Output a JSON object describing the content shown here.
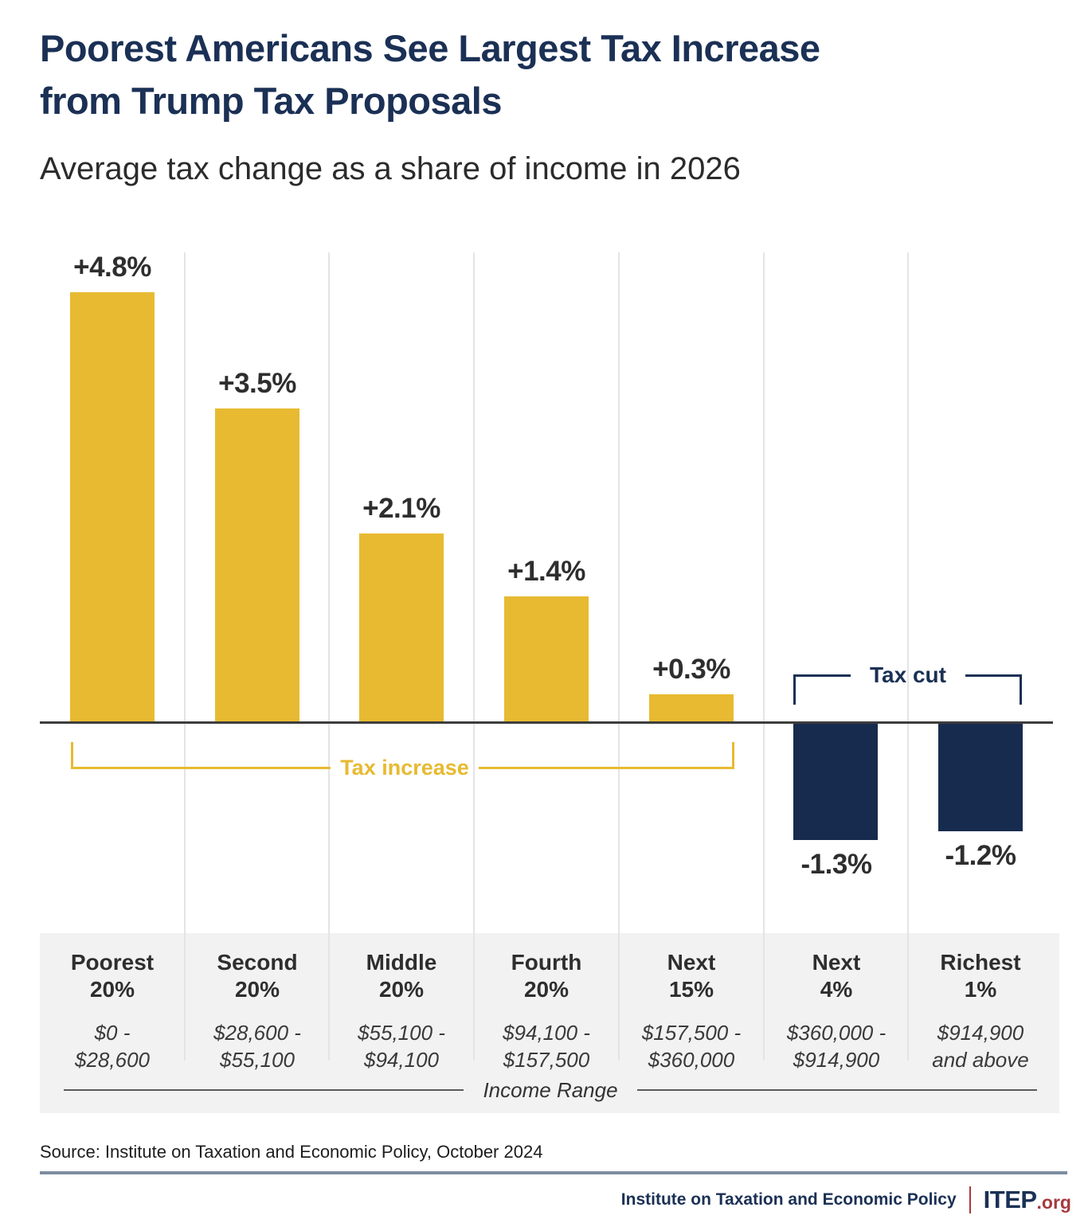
{
  "title_line1": "Poorest Americans See Largest Tax Increase",
  "title_line2": "from Trump Tax Proposals",
  "subtitle": "Average tax change as a share of income in 2026",
  "chart_data": {
    "type": "bar",
    "title": "Poorest Americans See Largest Tax Increase from Trump Tax Proposals",
    "subtitle": "Average tax change as a share of income in 2026",
    "unit": "percent of income",
    "categories": [
      {
        "name": "Poorest",
        "share": "20%",
        "range1": "$0 -",
        "range2": "$28,600"
      },
      {
        "name": "Second",
        "share": "20%",
        "range1": "$28,600 -",
        "range2": "$55,100"
      },
      {
        "name": "Middle",
        "share": "20%",
        "range1": "$55,100 -",
        "range2": "$94,100"
      },
      {
        "name": "Fourth",
        "share": "20%",
        "range1": "$94,100 -",
        "range2": "$157,500"
      },
      {
        "name": "Next",
        "share": "15%",
        "range1": "$157,500 -",
        "range2": "$360,000"
      },
      {
        "name": "Next",
        "share": "4%",
        "range1": "$360,000 -",
        "range2": "$914,900"
      },
      {
        "name": "Richest",
        "share": "1%",
        "range1": "$914,900",
        "range2": "and above"
      }
    ],
    "values": [
      4.8,
      3.5,
      2.1,
      1.4,
      0.3,
      -1.3,
      -1.2
    ],
    "value_labels": [
      "+4.8%",
      "+3.5%",
      "+2.1%",
      "+1.4%",
      "+0.3%",
      "-1.3%",
      "-1.2%"
    ],
    "annotations": {
      "tax_increase_label": "Tax increase",
      "tax_cut_label": "Tax cut"
    },
    "xlabel": "Income Range",
    "ylabel": "",
    "ylim": [
      -1.5,
      5.0
    ],
    "baseline": 0,
    "grid": "vertical-column-separators",
    "legend": "none",
    "series_colors": {
      "tax_increase": "#E7BA31",
      "tax_cut": "#172B4F"
    }
  },
  "source": "Source: Institute on Taxation and Economic Policy, October 2024",
  "footer": {
    "org": "Institute on Taxation and Economic Policy",
    "brand": "ITEP",
    "brand_suffix": ".org"
  },
  "colors": {
    "gold": "#E7BA31",
    "navy": "#1B3055",
    "bar_navy": "#172B4F",
    "red": "#A63A3E",
    "panel": "#F2F2F2",
    "gridline": "#E4E4E4",
    "baseline": "#3D3D3D",
    "text_dark": "#2E2E2E",
    "divider": "#7E8DA0"
  }
}
